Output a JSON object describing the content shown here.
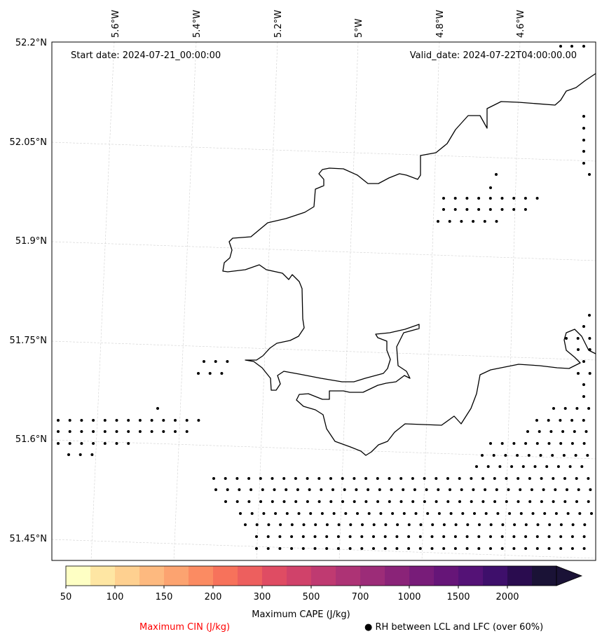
{
  "map": {
    "start_date": "Start date: 2024-07-21_00:00:00",
    "valid_date": "Valid_date: 2024-07-22T04:00:00.00",
    "lon_labels": [
      "5.6°W",
      "5.4°W",
      "5.2°W",
      "5°W",
      "4.8°W",
      "4.6°W"
    ],
    "lat_labels": [
      "52.2°N",
      "52.05°N",
      "51.9°N",
      "51.75°N",
      "51.6°N",
      "51.45°N"
    ],
    "coastline_color": "#000000",
    "stipple_color": "#000000"
  },
  "colorbar": {
    "label": "Maximum CAPE (J/kg)",
    "ticks": [
      "50",
      "100",
      "150",
      "200",
      "300",
      "500",
      "700",
      "1000",
      "1500",
      "2000"
    ],
    "colors": [
      "#feffc4",
      "#fee6a3",
      "#fed090",
      "#fdb97f",
      "#fca370",
      "#fb8b62",
      "#f7725b",
      "#ed5f5e",
      "#df4c63",
      "#d0426a",
      "#bf3a71",
      "#ad3375",
      "#9c2c78",
      "#8a2378",
      "#781c79",
      "#661578",
      "#541276",
      "#3e0f6b",
      "#2a0c4f",
      "#1a1236"
    ],
    "extend": "max"
  },
  "legend": {
    "cin_label": "Maximum CIN (J/kg)",
    "cin_color": "#ff0000",
    "rh_label": "● RH between LCL and LFC (over 60%)"
  }
}
